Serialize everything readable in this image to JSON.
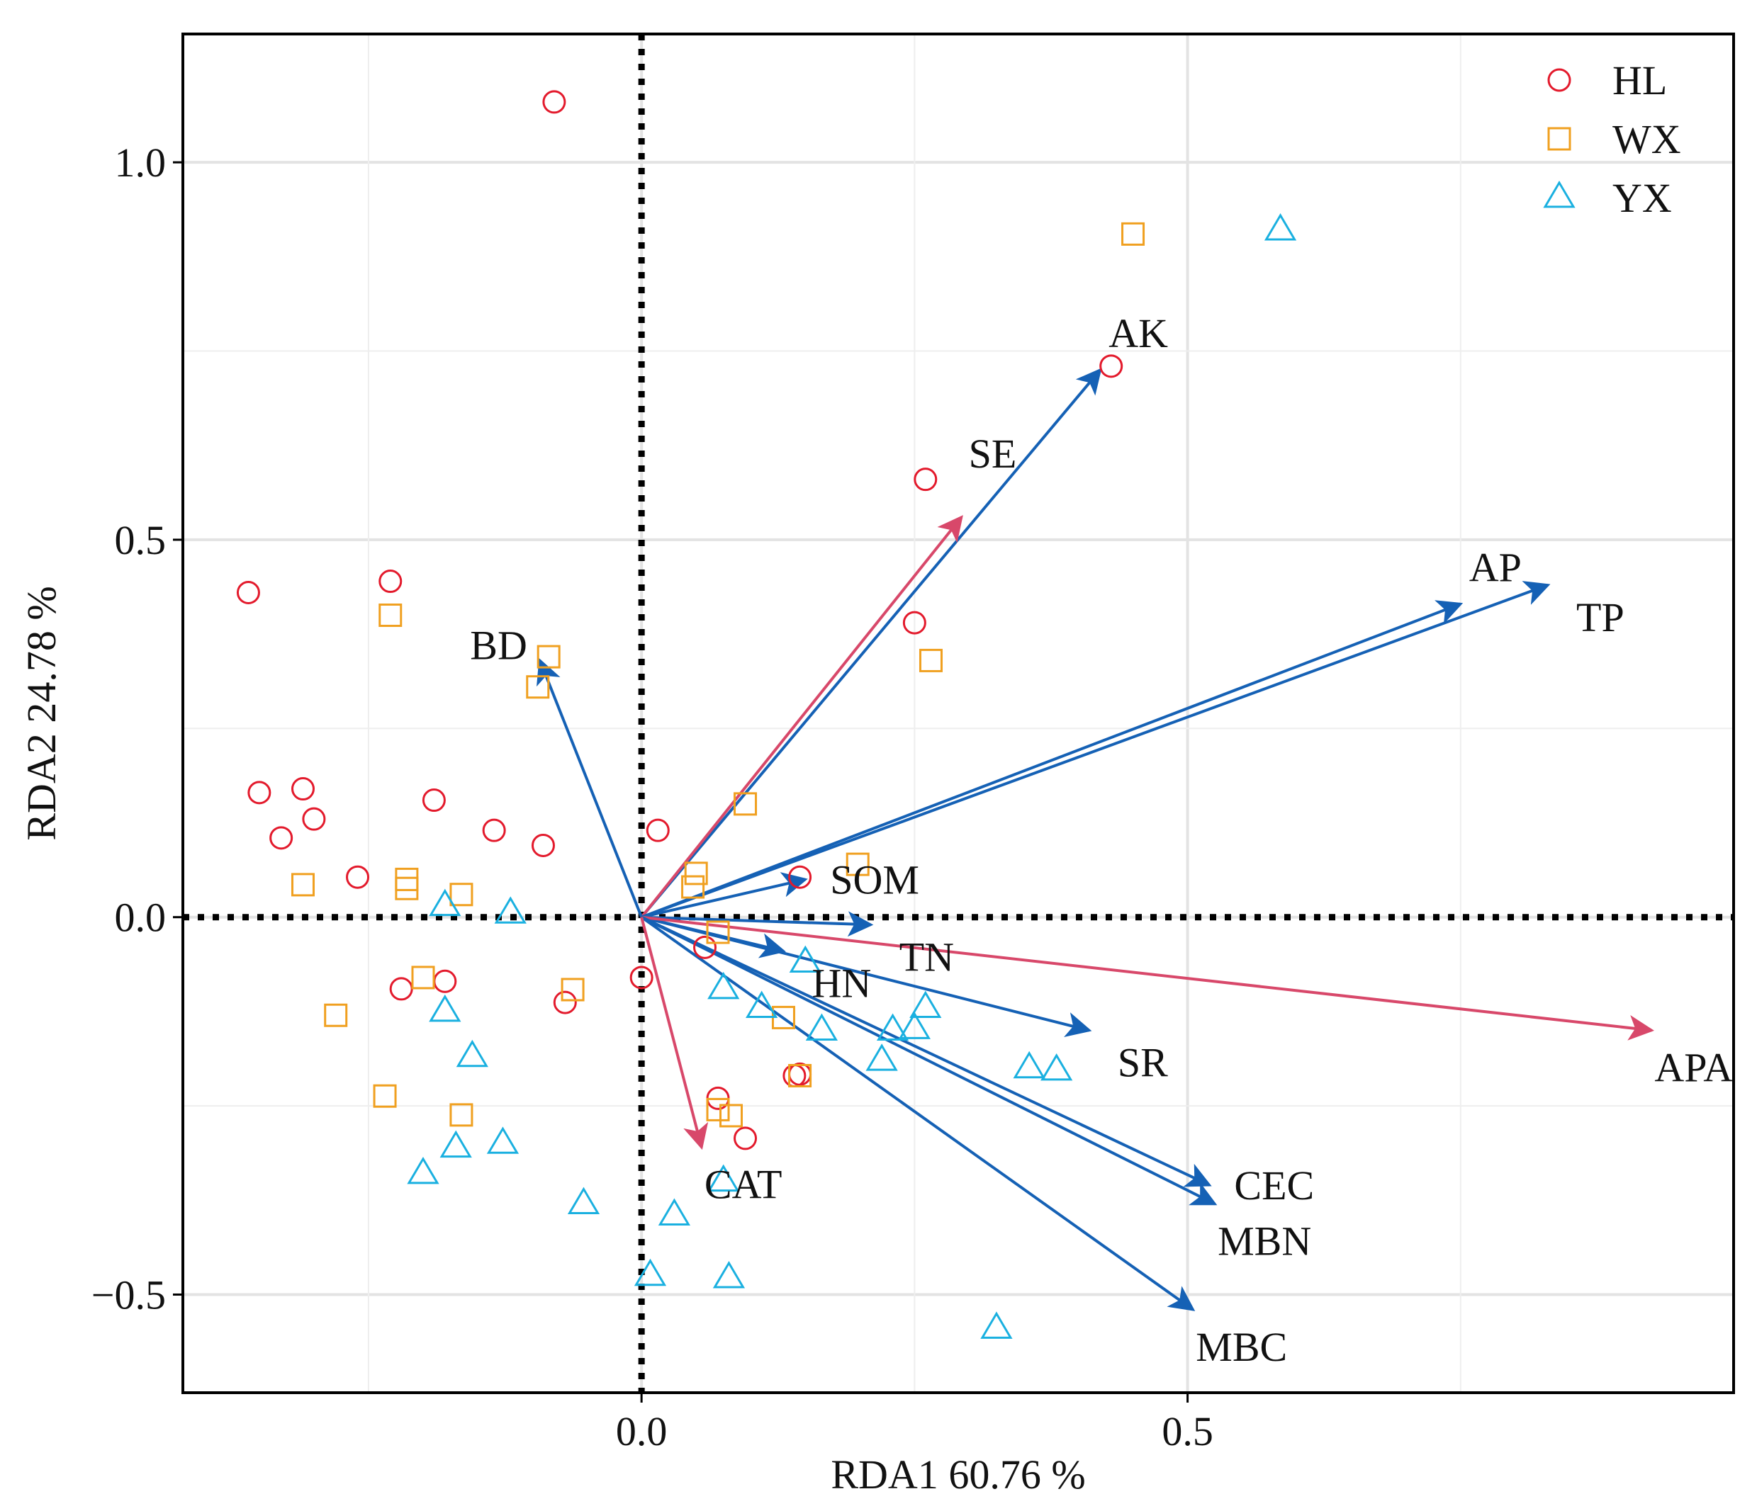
{
  "chart_data": {
    "type": "scatter",
    "xlabel": "RDA1 60.76 %",
    "ylabel": "RDA2 24.78 %",
    "xlim": [
      -0.42,
      1.0
    ],
    "ylim": [
      -0.63,
      1.17
    ],
    "x_ticks": [
      {
        "v": 0.0,
        "label": "0.0"
      },
      {
        "v": 0.5,
        "label": "0.5"
      }
    ],
    "y_ticks": [
      {
        "v": 1.0,
        "label": "1.0"
      },
      {
        "v": 0.5,
        "label": "0.5"
      },
      {
        "v": 0.0,
        "label": "0.0"
      },
      {
        "v": -0.5,
        "label": "−0.5"
      }
    ],
    "x_minor_grid": [
      -0.25,
      0.25,
      0.75
    ],
    "y_minor_grid": [
      0.75,
      0.25,
      -0.25
    ],
    "grid": true,
    "zero_lines": "dotted",
    "legend_position": "top-right",
    "series": [
      {
        "name": "HL",
        "marker": "circle",
        "color": "#e31a2c",
        "points": [
          [
            -0.08,
            1.08
          ],
          [
            0.43,
            0.73
          ],
          [
            0.26,
            0.58
          ],
          [
            0.25,
            0.39
          ],
          [
            -0.36,
            0.43
          ],
          [
            -0.23,
            0.445
          ],
          [
            -0.35,
            0.165
          ],
          [
            -0.31,
            0.17
          ],
          [
            -0.33,
            0.105
          ],
          [
            -0.3,
            0.13
          ],
          [
            -0.19,
            0.155
          ],
          [
            -0.135,
            0.115
          ],
          [
            -0.09,
            0.095
          ],
          [
            0.015,
            0.115
          ],
          [
            -0.26,
            0.053
          ],
          [
            0.145,
            0.053
          ],
          [
            0.058,
            -0.04
          ],
          [
            0.0,
            -0.08
          ],
          [
            -0.22,
            -0.095
          ],
          [
            -0.18,
            -0.085
          ],
          [
            -0.07,
            -0.113
          ],
          [
            0.07,
            -0.24
          ],
          [
            0.095,
            -0.293
          ],
          [
            0.14,
            -0.21
          ],
          [
            0.145,
            -0.208
          ]
        ]
      },
      {
        "name": "WX",
        "marker": "square",
        "color": "#f0a020",
        "points": [
          [
            0.45,
            0.905
          ],
          [
            -0.23,
            0.4
          ],
          [
            -0.085,
            0.345
          ],
          [
            -0.095,
            0.305
          ],
          [
            0.265,
            0.34
          ],
          [
            0.095,
            0.15
          ],
          [
            -0.31,
            0.043
          ],
          [
            -0.215,
            0.05
          ],
          [
            -0.215,
            0.038
          ],
          [
            -0.165,
            0.03
          ],
          [
            0.05,
            0.058
          ],
          [
            0.047,
            0.04
          ],
          [
            0.198,
            0.07
          ],
          [
            0.07,
            -0.02
          ],
          [
            -0.2,
            -0.08
          ],
          [
            -0.28,
            -0.13
          ],
          [
            -0.063,
            -0.096
          ],
          [
            0.13,
            -0.133
          ],
          [
            -0.235,
            -0.237
          ],
          [
            -0.165,
            -0.262
          ],
          [
            0.145,
            -0.21
          ],
          [
            0.07,
            -0.255
          ],
          [
            0.082,
            -0.263
          ]
        ]
      },
      {
        "name": "YX",
        "marker": "triangle",
        "color": "#1ab0e0",
        "points": [
          [
            0.585,
            0.91
          ],
          [
            -0.18,
            0.015
          ],
          [
            -0.12,
            0.005
          ],
          [
            -0.18,
            -0.125
          ],
          [
            -0.155,
            -0.185
          ],
          [
            -0.17,
            -0.305
          ],
          [
            -0.2,
            -0.34
          ],
          [
            -0.127,
            -0.3
          ],
          [
            -0.053,
            -0.38
          ],
          [
            0.03,
            -0.395
          ],
          [
            0.075,
            -0.095
          ],
          [
            0.11,
            -0.12
          ],
          [
            0.165,
            -0.15
          ],
          [
            0.23,
            -0.15
          ],
          [
            0.25,
            -0.148
          ],
          [
            0.26,
            -0.12
          ],
          [
            0.22,
            -0.19
          ],
          [
            0.355,
            -0.2
          ],
          [
            0.38,
            -0.203
          ],
          [
            0.075,
            -0.35
          ],
          [
            0.008,
            -0.475
          ],
          [
            0.08,
            -0.478
          ],
          [
            0.325,
            -0.545
          ],
          [
            0.15,
            -0.06
          ]
        ]
      }
    ],
    "vectors": [
      {
        "name": "AK",
        "x": 0.42,
        "y": 0.725,
        "color": "#1561b5",
        "label_pos": "above-right"
      },
      {
        "name": "SE",
        "x": 0.293,
        "y": 0.53,
        "color": "#d8486a",
        "label_pos": "above"
      },
      {
        "name": "AP",
        "x": 0.75,
        "y": 0.415,
        "color": "#1561b5",
        "label_pos": "above-right"
      },
      {
        "name": "TP",
        "x": 0.83,
        "y": 0.44,
        "color": "#1561b5",
        "label_pos": "below-right"
      },
      {
        "name": "BD",
        "x": -0.093,
        "y": 0.34,
        "color": "#1561b5",
        "label_pos": "left"
      },
      {
        "name": "SOM",
        "x": 0.15,
        "y": 0.05,
        "color": "#1561b5",
        "label_pos": "right"
      },
      {
        "name": "TN",
        "x": 0.21,
        "y": -0.01,
        "color": "#1561b5",
        "label_pos": "below-right"
      },
      {
        "name": "HN",
        "x": 0.13,
        "y": -0.045,
        "color": "#1561b5",
        "label_pos": "below-right"
      },
      {
        "name": "SR",
        "x": 0.41,
        "y": -0.15,
        "color": "#1561b5",
        "label_pos": "below-right"
      },
      {
        "name": "APA",
        "x": 0.925,
        "y": -0.15,
        "color": "#d8486a",
        "label_pos": "below"
      },
      {
        "name": "CEC",
        "x": 0.52,
        "y": -0.355,
        "color": "#1561b5",
        "label_pos": "right"
      },
      {
        "name": "MBN",
        "x": 0.525,
        "y": -0.38,
        "color": "#1561b5",
        "label_pos": "below"
      },
      {
        "name": "MBC",
        "x": 0.505,
        "y": -0.52,
        "color": "#1561b5",
        "label_pos": "below"
      },
      {
        "name": "CAT",
        "x": 0.055,
        "y": -0.305,
        "color": "#d8486a",
        "label_pos": "below"
      }
    ]
  }
}
